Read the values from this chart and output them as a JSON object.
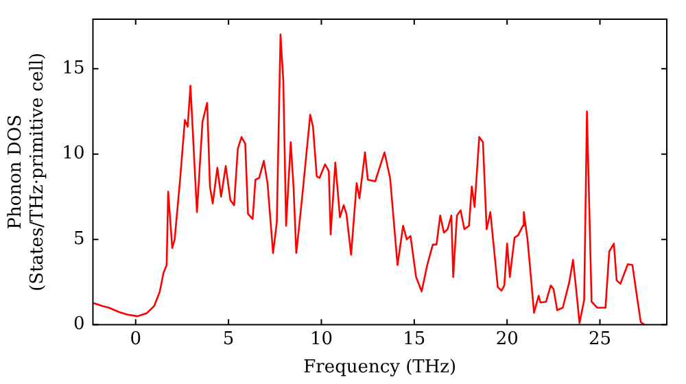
{
  "chart_data": {
    "type": "line",
    "xlabel": "Frequency (THz)",
    "ylabel": "Phonon DOS\n(States/THz·primitive cell)",
    "xlim": [
      -2.3,
      28.6
    ],
    "ylim": [
      0,
      17.9
    ],
    "xticks": [
      0,
      5,
      10,
      15,
      20,
      25
    ],
    "yticks": [
      0,
      5,
      10,
      15
    ],
    "grid": false,
    "legend": false,
    "marker": "none",
    "line_style": "solid",
    "series": [
      {
        "color": "#ff0000",
        "x": [
          -2.27,
          -1.8,
          -1.44,
          -0.9,
          -0.45,
          0.08,
          0.6,
          1.0,
          1.3,
          1.5,
          1.67,
          1.75,
          1.97,
          2.1,
          2.4,
          2.65,
          2.8,
          2.95,
          3.3,
          3.6,
          3.85,
          4.0,
          4.15,
          4.4,
          4.6,
          4.85,
          5.1,
          5.3,
          5.5,
          5.7,
          5.9,
          6.05,
          6.3,
          6.45,
          6.65,
          6.9,
          7.1,
          7.4,
          7.6,
          7.8,
          7.95,
          8.1,
          8.35,
          8.5,
          8.65,
          8.95,
          9.4,
          9.55,
          9.75,
          9.9,
          10.2,
          10.4,
          10.5,
          10.75,
          11.0,
          11.2,
          11.35,
          11.6,
          11.9,
          12.05,
          12.35,
          12.5,
          12.9,
          13.4,
          13.7,
          14.1,
          14.4,
          14.6,
          14.8,
          15.1,
          15.4,
          15.7,
          16.0,
          16.2,
          16.4,
          16.6,
          16.8,
          17.0,
          17.1,
          17.3,
          17.5,
          17.7,
          17.95,
          18.1,
          18.25,
          18.5,
          18.7,
          18.9,
          19.1,
          19.5,
          19.7,
          19.85,
          20.0,
          20.15,
          20.4,
          20.6,
          20.85,
          20.9,
          21.1,
          21.3,
          21.45,
          21.7,
          21.8,
          22.1,
          22.35,
          22.5,
          22.7,
          23.0,
          23.35,
          23.55,
          23.7,
          23.9,
          24.15,
          24.3,
          24.55,
          24.85,
          25.3,
          25.5,
          25.75,
          25.9,
          26.1,
          26.5,
          26.75,
          27.0,
          27.2,
          27.4
        ],
        "values": [
          1.27,
          1.1,
          1.0,
          0.75,
          0.6,
          0.5,
          0.68,
          1.1,
          1.95,
          3.05,
          3.5,
          7.8,
          4.5,
          5.0,
          8.6,
          12.0,
          11.6,
          14.0,
          6.6,
          11.9,
          13.0,
          8.1,
          7.1,
          9.2,
          7.5,
          9.3,
          7.3,
          7.0,
          10.3,
          11.0,
          10.6,
          6.5,
          6.2,
          8.5,
          8.6,
          9.6,
          8.3,
          4.2,
          6.0,
          17.0,
          14.3,
          5.8,
          10.7,
          8.1,
          4.2,
          7.3,
          12.3,
          11.6,
          8.7,
          8.6,
          9.4,
          9.0,
          5.3,
          9.5,
          6.3,
          7.0,
          6.5,
          4.1,
          8.3,
          7.4,
          10.1,
          8.5,
          8.4,
          10.1,
          8.6,
          3.5,
          5.8,
          5.0,
          5.2,
          2.8,
          1.95,
          3.5,
          4.7,
          4.7,
          6.4,
          5.4,
          5.6,
          6.4,
          2.8,
          6.4,
          6.7,
          5.6,
          5.8,
          8.1,
          6.9,
          11.0,
          10.7,
          5.6,
          6.6,
          2.2,
          2.0,
          2.3,
          4.75,
          2.8,
          5.1,
          5.25,
          5.8,
          6.6,
          5.0,
          2.6,
          0.7,
          1.7,
          1.3,
          1.35,
          2.3,
          2.1,
          0.85,
          1.0,
          2.5,
          3.8,
          2.3,
          0.1,
          1.45,
          12.5,
          1.35,
          1.0,
          1.0,
          4.3,
          4.75,
          2.6,
          2.4,
          3.55,
          3.5,
          1.6,
          0.15,
          0
        ]
      }
    ]
  }
}
